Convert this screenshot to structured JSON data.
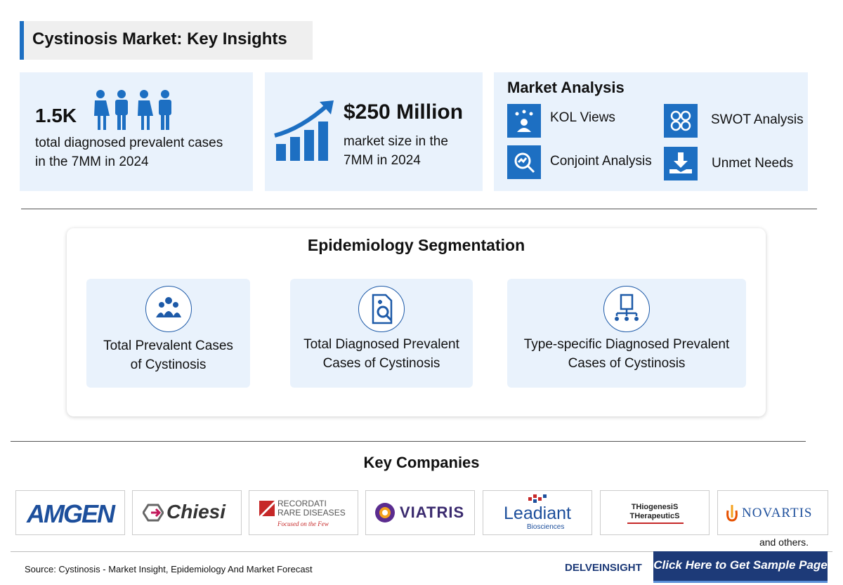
{
  "header": {
    "title": "Cystinosis Market: Key Insights"
  },
  "highlights": [
    {
      "value": "1.5K",
      "text": [
        "total diagnosed prevalent cases",
        "in the 7MM in 2024"
      ]
    },
    {
      "value": "$250 Million",
      "text": [
        "market size in the",
        "7MM in 2024"
      ]
    }
  ],
  "market_analysis": {
    "title": "Market Analysis",
    "items": [
      "KOL Views",
      "Conjoint Analysis",
      "SWOT Analysis",
      "Unmet Needs"
    ]
  },
  "epidemiology": {
    "title": "Epidemiology Segmentation",
    "segments": [
      [
        "Total Prevalent Cases",
        "of Cystinosis"
      ],
      [
        "Total Diagnosed Prevalent",
        "Cases of Cystinosis"
      ],
      [
        "Type-specific Diagnosed Prevalent",
        "Cases of Cystinosis"
      ]
    ]
  },
  "companies": {
    "title": "Key Companies",
    "logos": [
      [
        "AMGEN"
      ],
      [
        "Chiesi"
      ],
      [
        "RECORDATI",
        "RARE DISEASES",
        "Focused on the Few"
      ],
      [
        "VIATRIS"
      ],
      [
        "Leadiant",
        "Biosciences"
      ],
      [
        "THiogenesiS",
        "THerapeuticS"
      ],
      [
        "NOVARTIS"
      ]
    ],
    "note": "and others."
  },
  "footer": {
    "source": "Source: Cystinosis - Market Insight, Epidemiology And Market Forecast",
    "brand": "DELVEINSIGHT",
    "button": "Click Here to Get Sample Page"
  }
}
